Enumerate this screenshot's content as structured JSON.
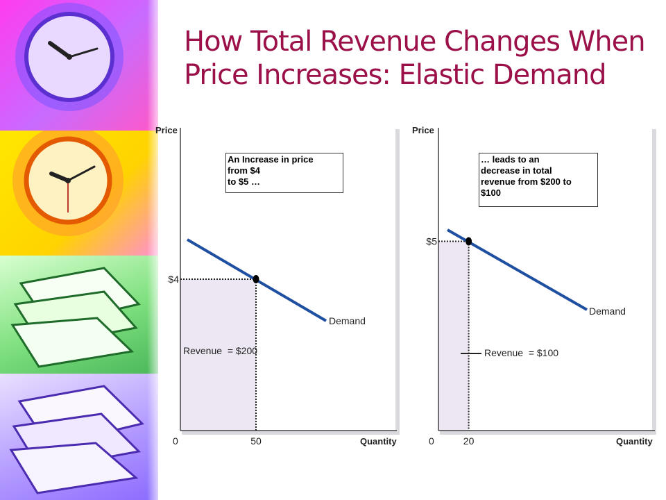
{
  "title": "How Total Revenue Changes When Price Increases: Elastic Demand",
  "strip_icons": [
    "clock-icon",
    "clock-icon",
    "paper-stack-icon",
    "paper-stack-icon"
  ],
  "colors": {
    "title": "#9b1048",
    "demand": "#1f4fa0",
    "revenue_fill": "#ece7f3",
    "frame_shadow": "#d9d9de"
  },
  "chart_data": [
    {
      "type": "line",
      "ylabel": "Price",
      "xlabel": "Quantity",
      "origin_label": "0",
      "series": [
        {
          "name": "Demand"
        }
      ],
      "point": {
        "x": 50,
        "y": 4,
        "x_label": "50",
        "y_label": "$4"
      },
      "revenue_label": "Revenue  = $200",
      "annotation": "An Increase in price\nfrom $4\n to $5 …"
    },
    {
      "type": "line",
      "ylabel": "Price",
      "xlabel": "Quantity",
      "origin_label": "0",
      "series": [
        {
          "name": "Demand"
        }
      ],
      "point": {
        "x": 20,
        "y": 5,
        "x_label": "20",
        "y_label": "$5"
      },
      "revenue_label": "Revenue  = $100",
      "annotation": "… leads to an\ndecrease in total\nrevenue from $200 to\n$100"
    }
  ]
}
